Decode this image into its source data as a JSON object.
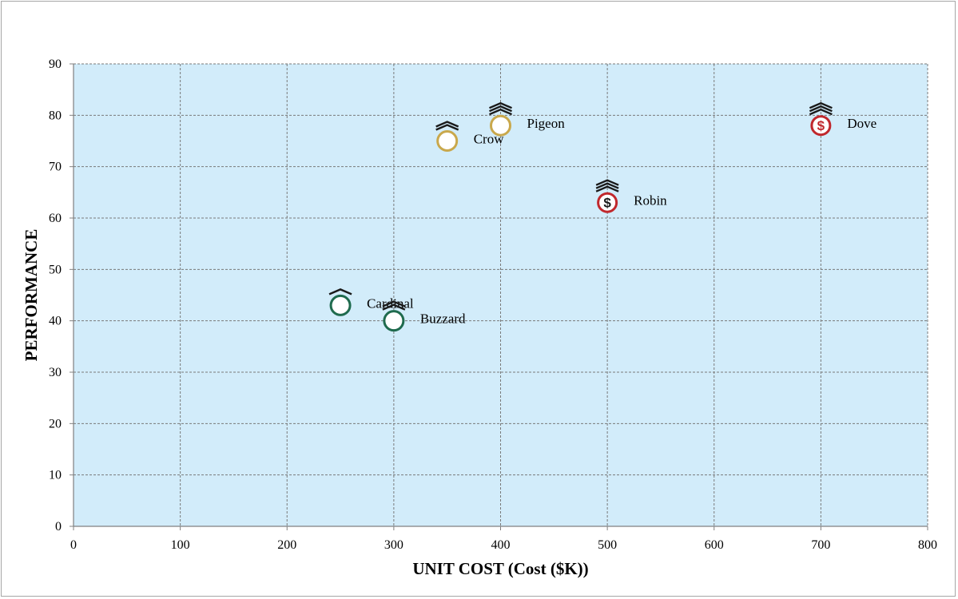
{
  "chart_data": {
    "type": "scatter",
    "title": "",
    "xlabel": "UNIT COST (Cost ($K))",
    "ylabel": "PERFORMANCE",
    "xlim": [
      0,
      800
    ],
    "ylim": [
      0,
      90
    ],
    "x_ticks": [
      0,
      100,
      200,
      300,
      400,
      500,
      600,
      700,
      800
    ],
    "y_ticks": [
      0,
      10,
      20,
      30,
      40,
      50,
      60,
      70,
      80,
      90
    ],
    "grid": true,
    "plot_background": "#d2ecfa",
    "points": [
      {
        "label": "Cardinal",
        "x": 250,
        "y": 43,
        "ring_color": "#1f6b4e",
        "chevrons": 1,
        "dollar": false
      },
      {
        "label": "Buzzard",
        "x": 300,
        "y": 40,
        "ring_color": "#1f6b4e",
        "chevrons": 2,
        "dollar": false
      },
      {
        "label": "Crow",
        "x": 350,
        "y": 75,
        "ring_color": "#c9a84c",
        "chevrons": 2,
        "dollar": false
      },
      {
        "label": "Pigeon",
        "x": 400,
        "y": 78,
        "ring_color": "#c9a84c",
        "chevrons": 3,
        "dollar": false
      },
      {
        "label": "Robin",
        "x": 500,
        "y": 63,
        "ring_color": "#c0282d",
        "chevrons": 3,
        "dollar": true
      },
      {
        "label": "Dove",
        "x": 700,
        "y": 78,
        "ring_color": "#c0282d",
        "chevrons": 3,
        "dollar": true
      }
    ]
  }
}
